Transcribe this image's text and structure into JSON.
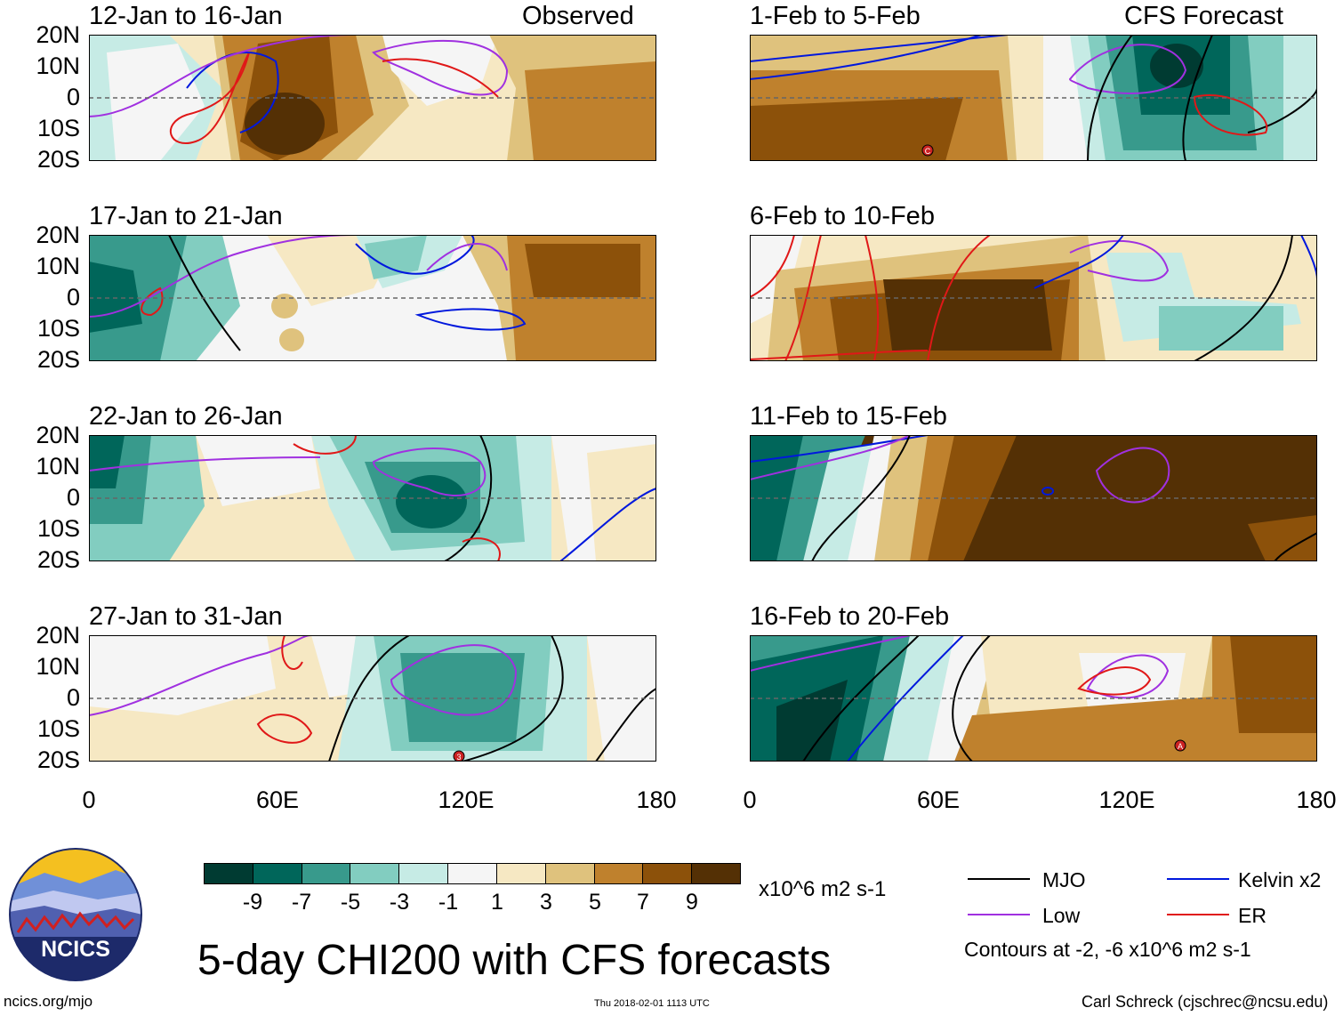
{
  "header": {
    "observed_label": "Observed",
    "forecast_label": "CFS Forecast"
  },
  "chart_data": {
    "type": "heatmap",
    "variable": "5-day CHI200 anomaly",
    "units": "x10^6 m2 s-1",
    "xlim": [
      0,
      180
    ],
    "ylim": [
      -20,
      20
    ],
    "lat_ticks": [
      20,
      10,
      0,
      -10,
      -20
    ],
    "lat_tick_labels": [
      "20N",
      "10N",
      "0",
      "10S",
      "20S"
    ],
    "lon_ticks": [
      0,
      60,
      120,
      180
    ],
    "lon_tick_labels": [
      "0",
      "60E",
      "120E",
      "180"
    ],
    "panels": [
      {
        "title": "12-Jan to 16-Jan",
        "column": "observed",
        "row": 0
      },
      {
        "title": "17-Jan to 21-Jan",
        "column": "observed",
        "row": 1
      },
      {
        "title": "22-Jan to 26-Jan",
        "column": "observed",
        "row": 2
      },
      {
        "title": "27-Jan to 31-Jan",
        "column": "observed",
        "row": 3
      },
      {
        "title": "1-Feb to 5-Feb",
        "column": "forecast",
        "row": 0
      },
      {
        "title": "6-Feb to 10-Feb",
        "column": "forecast",
        "row": 1
      },
      {
        "title": "11-Feb to 15-Feb",
        "column": "forecast",
        "row": 2
      },
      {
        "title": "16-Feb to 20-Feb",
        "column": "forecast",
        "row": 3
      }
    ],
    "colorbar": {
      "colors": [
        "#003b32",
        "#00665a",
        "#389a8c",
        "#82cdc0",
        "#c6ebe5",
        "#f5f5f5",
        "#f6e8c3",
        "#dfc27d",
        "#bf812d",
        "#8c510a",
        "#543005"
      ],
      "labels": [
        "-9",
        "-7",
        "-5",
        "-3",
        "-1",
        "1",
        "3",
        "5",
        "7",
        "9"
      ],
      "units": "x10^6 m2 s-1"
    },
    "contours": {
      "legend": [
        {
          "name": "MJO",
          "color": "#000000"
        },
        {
          "name": "Kelvin x2",
          "color": "#0018dd"
        },
        {
          "name": "Low",
          "color": "#a030e0"
        },
        {
          "name": "ER",
          "color": "#e01818"
        }
      ],
      "note": "Contours at -2, -6 x10^6 m2 s-1"
    }
  },
  "title": "5-day CHI200 with CFS forecasts",
  "footer": {
    "url": "ncics.org/mjo",
    "timestamp": "Thu 2018-02-01 1113 UTC",
    "author": "Carl Schreck (cjschrec@ncsu.edu)",
    "logo_text": "NCICS"
  },
  "storm_markers": [
    {
      "panel": 4,
      "label": "C"
    },
    {
      "panel": 3,
      "label": "3"
    },
    {
      "panel": 7,
      "label": "A"
    }
  ]
}
